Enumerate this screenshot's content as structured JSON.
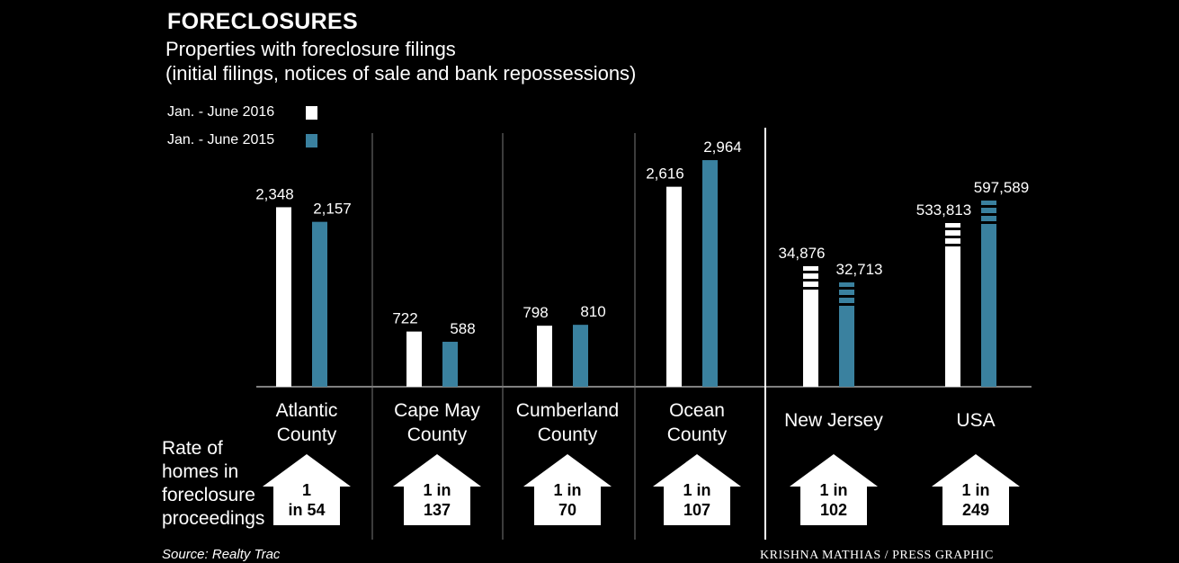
{
  "chart_data": {
    "type": "bar",
    "title": "FORECLOSURES",
    "subtitle_lines": [
      "Properties with foreclosure filings",
      "(initial filings, notices of sale and bank repossessions)"
    ],
    "series": [
      {
        "name": "Jan. - June 2016",
        "color": "#ffffff",
        "values": [
          2348,
          722,
          798,
          2616,
          34876,
          533813
        ],
        "labels": [
          "2,348",
          "722",
          "798",
          "2,616",
          "34,876",
          "533,813"
        ]
      },
      {
        "name": "Jan. - June 2015",
        "color": "#3a819f",
        "values": [
          2157,
          588,
          810,
          2964,
          32713,
          597589
        ],
        "labels": [
          "2,157",
          "588",
          "810",
          "2,964",
          "32,713",
          "597,589"
        ]
      }
    ],
    "categories": [
      [
        "Atlantic",
        "County"
      ],
      [
        "Cape May",
        "County"
      ],
      [
        "Cumberland",
        "County"
      ],
      [
        "Ocean",
        "County"
      ],
      [
        "New Jersey"
      ],
      [
        "USA"
      ]
    ],
    "county_ylim": [
      0,
      3000
    ],
    "broken_axis_categories": [
      "New Jersey",
      "USA"
    ],
    "rate_label": [
      "Rate of",
      "homes in",
      "foreclosure",
      "proceedings"
    ],
    "rates": [
      [
        "1",
        "in 54"
      ],
      [
        "1 in",
        "137"
      ],
      [
        "1 in",
        "70"
      ],
      [
        "1 in",
        "107"
      ],
      [
        "1 in",
        "102"
      ],
      [
        "1 in",
        "249"
      ]
    ],
    "source": "Source: Realty Trac",
    "credit": "KRISHNA MATHIAS / PRESS GRAPHIC"
  }
}
